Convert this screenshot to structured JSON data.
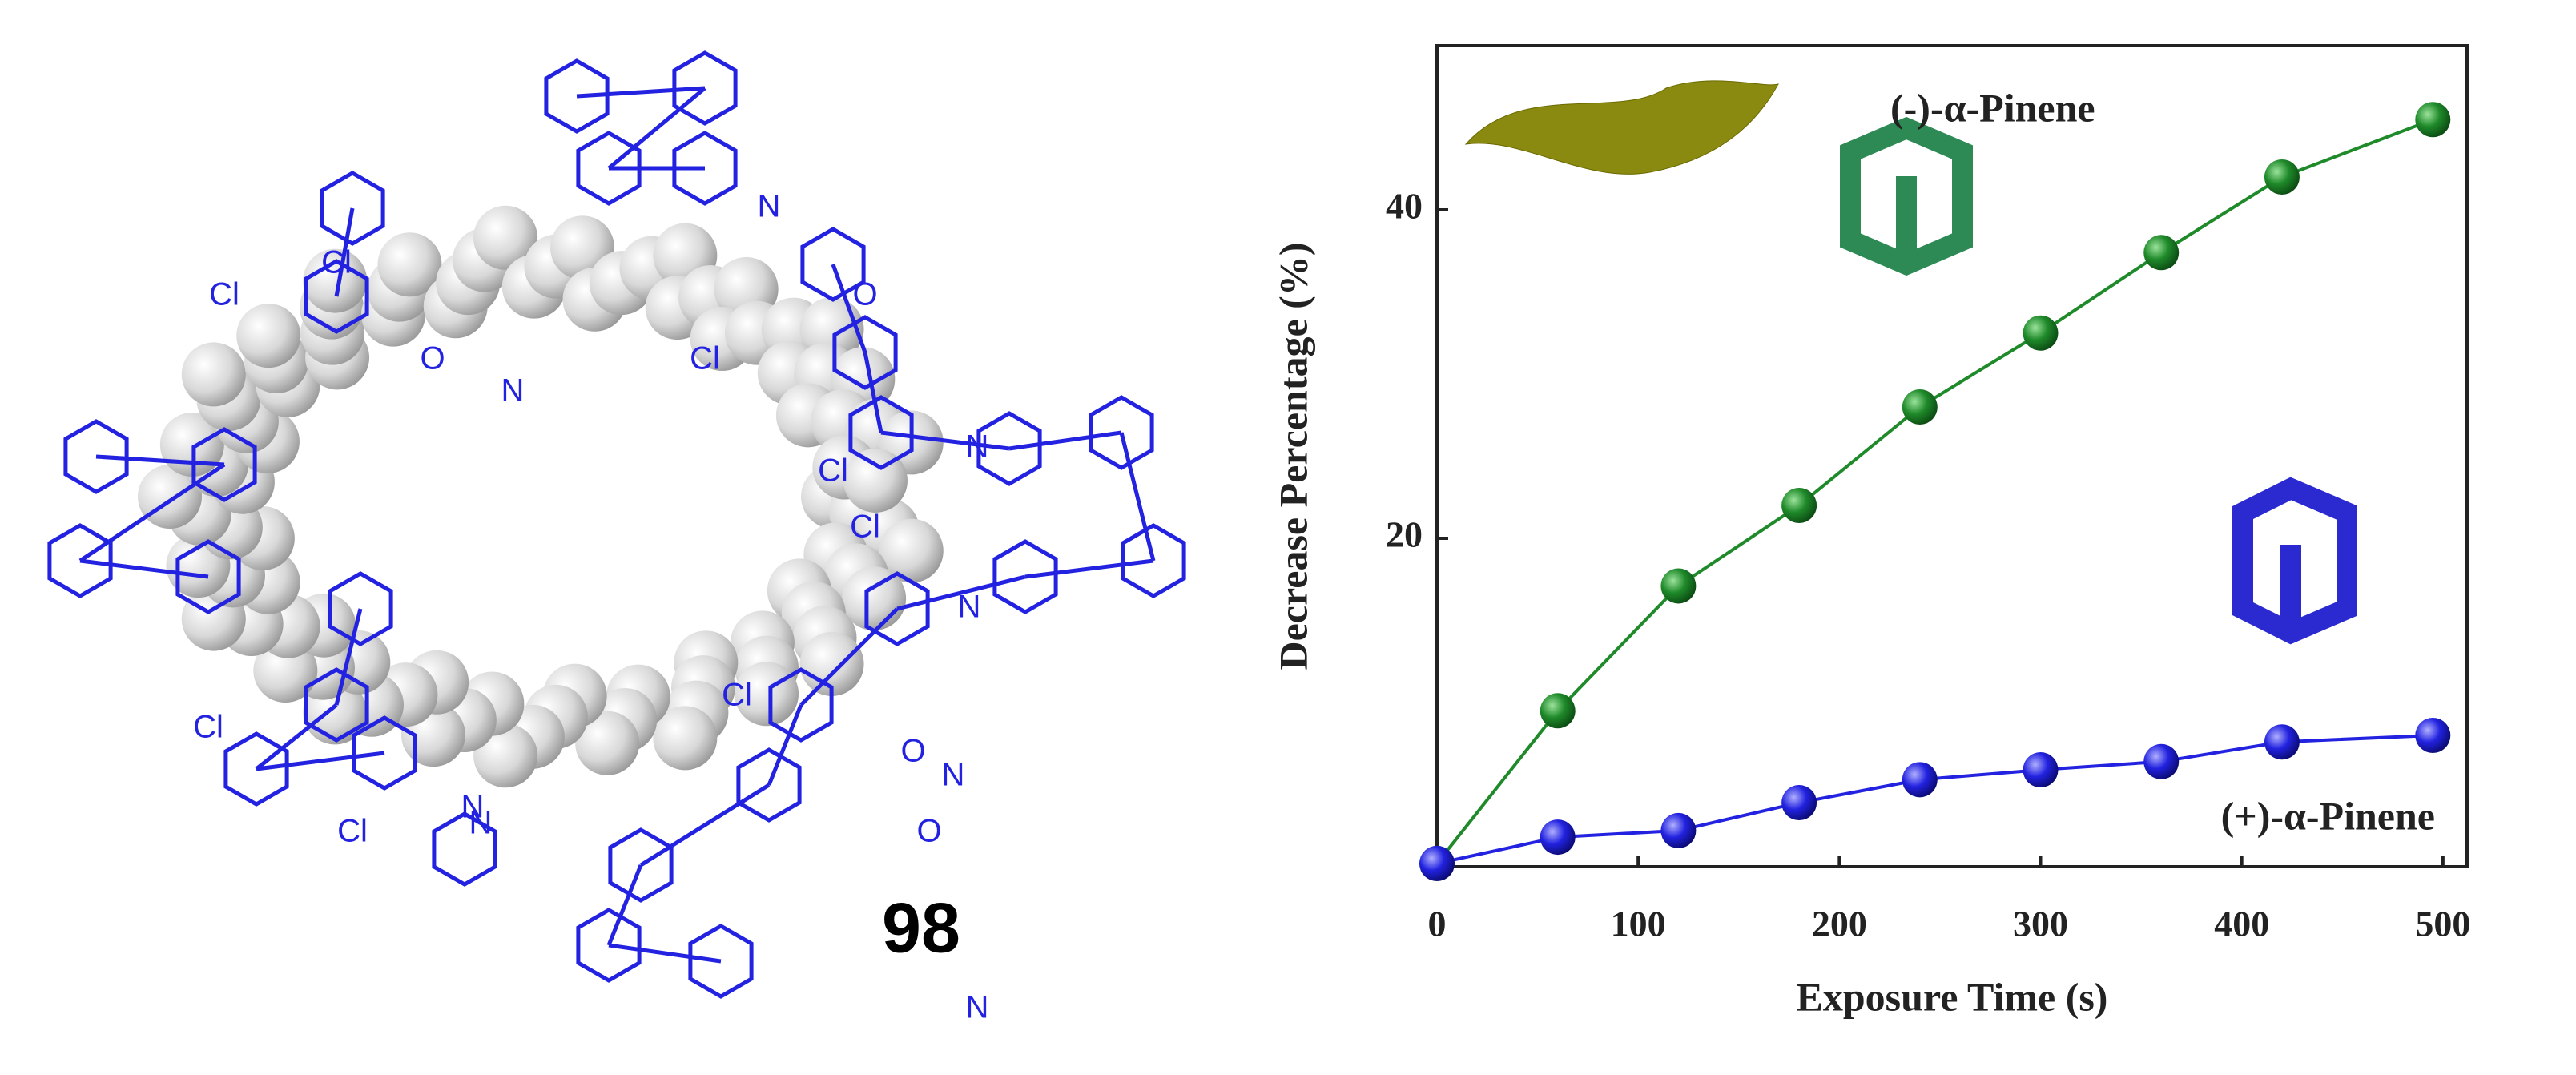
{
  "structure": {
    "label": "98",
    "atoms": [
      "Cl",
      "Cl",
      "Cl",
      "Cl",
      "Cl",
      "Cl",
      "Cl",
      "Cl",
      "N",
      "N",
      "N",
      "N",
      "N",
      "N",
      "N",
      "N",
      "O",
      "O",
      "O",
      "O"
    ]
  },
  "chart_data": {
    "type": "line",
    "x_label": "Exposure Time (s)",
    "y_label": "Decrease Percentage  (%)",
    "x": [
      0,
      60,
      120,
      180,
      240,
      300,
      360,
      420,
      495
    ],
    "series": [
      {
        "name": "(-)-α-Pinene",
        "color": "#1f8a2a",
        "values": [
          0.2,
          9.5,
          17.1,
          22.0,
          28.0,
          32.5,
          37.4,
          42.0,
          45.5
        ]
      },
      {
        "name": "(+)-α-Pinene",
        "color": "#2222e0",
        "values": [
          0.2,
          1.8,
          2.2,
          3.9,
          5.3,
          5.9,
          6.4,
          7.6,
          8.0
        ]
      }
    ],
    "xlim": [
      0,
      512
    ],
    "ylim": [
      0,
      50
    ],
    "xticks": [
      0,
      100,
      200,
      300,
      400,
      500
    ],
    "yticks": [
      20,
      40
    ]
  }
}
